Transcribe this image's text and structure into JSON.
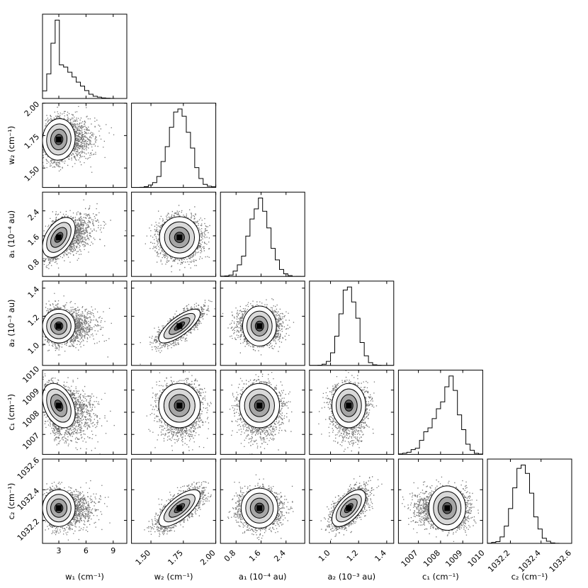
{
  "chart_data": {
    "type": "corner",
    "parameters": [
      {
        "name": "w1",
        "label": "w₁ (cm⁻¹)",
        "range": [
          1.2,
          10.5
        ],
        "ticks": [
          3,
          6,
          9
        ],
        "tick_labels": [
          "3",
          "6",
          "9"
        ],
        "mode": 3.0,
        "std": 0.9,
        "skew": 1.6
      },
      {
        "name": "w2",
        "label": "w₂ (cm⁻¹)",
        "range": [
          1.35,
          2.0
        ],
        "ticks": [
          1.5,
          1.75,
          2.0
        ],
        "tick_labels": [
          "1.50",
          "1.75",
          "2.00"
        ],
        "mode": 1.72,
        "std": 0.08,
        "skew": 0
      },
      {
        "name": "a1",
        "label": "a₁ (10⁻⁴ au)",
        "range": [
          0.3,
          3.0
        ],
        "ticks": [
          0.8,
          1.6,
          2.4
        ],
        "tick_labels": [
          "0.8",
          "1.6",
          "2.4"
        ],
        "mode": 1.55,
        "std": 0.32,
        "skew": 0
      },
      {
        "name": "a2",
        "label": "a₂ (10⁻³ au)",
        "range": [
          0.85,
          1.45
        ],
        "ticks": [
          1.0,
          1.2,
          1.4
        ],
        "tick_labels": [
          "1.0",
          "1.2",
          "1.4"
        ],
        "mode": 1.13,
        "std": 0.06,
        "skew": 0
      },
      {
        "name": "c1",
        "label": "c₁ (cm⁻¹)",
        "range": [
          1006.1,
          1009.9
        ],
        "ticks": [
          1007,
          1008,
          1009,
          1010
        ],
        "tick_labels": [
          "1007",
          "1008",
          "1009",
          "1010"
        ],
        "mode": 1008.3,
        "std": 0.5,
        "skew": -0.6
      },
      {
        "name": "c2",
        "label": "c₂ (cm⁻¹)",
        "range": [
          1032.05,
          1032.6
        ],
        "ticks": [
          1032.2,
          1032.4,
          1032.6
        ],
        "tick_labels": [
          "1032.2",
          "1032.4",
          "1032.6"
        ],
        "mode": 1032.28,
        "std": 0.06,
        "skew": 0
      }
    ],
    "correlations": [
      [
        1,
        0.05,
        0.45,
        0.0,
        -0.35,
        0.0
      ],
      [
        0.05,
        1,
        0.0,
        0.75,
        0.0,
        0.7
      ],
      [
        0.45,
        0.0,
        1,
        0.0,
        0.0,
        0.0
      ],
      [
        0.0,
        0.75,
        0.0,
        1,
        0.0,
        0.6
      ],
      [
        -0.35,
        0.0,
        0.0,
        0.0,
        1,
        0.0
      ],
      [
        0.0,
        0.7,
        0.0,
        0.6,
        0.0,
        1
      ]
    ],
    "contour_levels_sigma": [
      0.5,
      1.0,
      1.5,
      2.0
    ],
    "histogram_bins": 20,
    "samples_per_panel": 2600
  }
}
